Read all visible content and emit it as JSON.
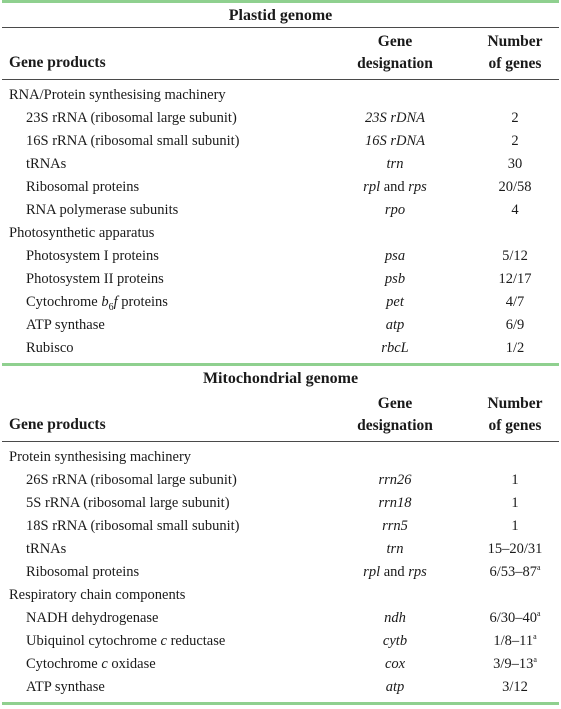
{
  "plastid": {
    "title": "Plastid genome",
    "header": {
      "col1": "Gene products",
      "col2_line1": "Gene",
      "col2_line2": "designation",
      "col3_line1": "Number",
      "col3_line2": "of genes"
    },
    "groups": [
      {
        "name": "RNA/Protein synthesising machinery",
        "rows": [
          {
            "product": "23S rRNA (ribosomal large subunit)",
            "designation": "23S rDNA",
            "count": "2"
          },
          {
            "product": "16S rRNA (ribosomal small subunit)",
            "designation": "16S rDNA",
            "count": "2"
          },
          {
            "product": "tRNAs",
            "designation": "trn",
            "count": "30"
          },
          {
            "product": "Ribosomal proteins",
            "designation_a": "rpl",
            "designation_and": "and",
            "designation_b": "rps",
            "count": "20/58"
          },
          {
            "product": "RNA polymerase subunits",
            "designation": "rpo",
            "count": "4"
          }
        ]
      },
      {
        "name": "Photosynthetic apparatus",
        "rows": [
          {
            "product": "Photosystem I proteins",
            "designation": "psa",
            "count": "5/12"
          },
          {
            "product": "Photosystem II proteins",
            "designation": "psb",
            "count": "12/17"
          },
          {
            "product_pre": "Cytochrome ",
            "product_b": "b",
            "product_sub": "6",
            "product_f": "f",
            "product_post": " proteins",
            "designation": "pet",
            "count": "4/7"
          },
          {
            "product": "ATP synthase",
            "designation": "atp",
            "count": "6/9"
          },
          {
            "product": "Rubisco",
            "designation": "rbcL",
            "count": "1/2"
          }
        ]
      }
    ]
  },
  "mitochondrial": {
    "title": "Mitochondrial genome",
    "header": {
      "col1": "Gene products",
      "col2_line1": "Gene",
      "col2_line2": "designation",
      "col3_line1": "Number",
      "col3_line2": "of genes"
    },
    "groups": [
      {
        "name": "Protein synthesising machinery",
        "rows": [
          {
            "product": "26S rRNA (ribosomal large subunit)",
            "designation": "rrn26",
            "count": "1"
          },
          {
            "product": "5S rRNA (ribosomal large subunit)",
            "designation": "rrn18",
            "count": "1"
          },
          {
            "product": "18S rRNA (ribosomal small subunit)",
            "designation": "rrn5",
            "count": "1"
          },
          {
            "product": "tRNAs",
            "designation": "trn",
            "count": "15–20/31"
          },
          {
            "product": "Ribosomal proteins",
            "designation_a": "rpl",
            "designation_and": "and",
            "designation_b": "rps",
            "count": "6/53–87",
            "count_sup": "a"
          }
        ]
      },
      {
        "name": "Respiratory chain components",
        "rows": [
          {
            "product": "NADH dehydrogenase",
            "designation": "ndh",
            "count": "6/30–40",
            "count_sup": "a"
          },
          {
            "product_pre": "Ubiquinol cytochrome ",
            "product_c": "c",
            "product_post": " reductase",
            "designation": "cytb",
            "count": "1/8–11",
            "count_sup": "a"
          },
          {
            "product_pre": "Cytochrome ",
            "product_c": "c",
            "product_post": " oxidase",
            "designation": "cox",
            "count": "3/9–13",
            "count_sup": "a"
          },
          {
            "product": "ATP synthase",
            "designation": "atp",
            "count": "3/12"
          }
        ]
      }
    ]
  }
}
